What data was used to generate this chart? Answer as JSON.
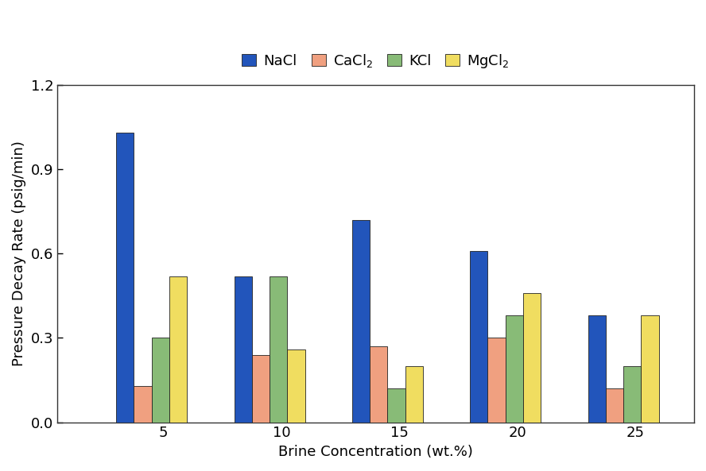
{
  "concentrations": [
    5,
    10,
    15,
    20,
    25
  ],
  "series": {
    "NaCl": [
      1.03,
      0.52,
      0.72,
      0.61,
      0.38
    ],
    "CaCl2": [
      0.13,
      0.24,
      0.27,
      0.3,
      0.12
    ],
    "KCl": [
      0.3,
      0.52,
      0.12,
      0.38,
      0.2
    ],
    "MgCl2": [
      0.52,
      0.26,
      0.2,
      0.46,
      0.38
    ]
  },
  "colors": {
    "NaCl": "#2255bb",
    "CaCl2": "#f0a080",
    "KCl": "#88bb77",
    "MgCl2": "#f0dd60"
  },
  "legend_labels": [
    "NaCl",
    "CaCl$_2$",
    "KCl",
    "MgCl$_2$"
  ],
  "legend_keys": [
    "NaCl",
    "CaCl2",
    "KCl",
    "MgCl2"
  ],
  "xlabel": "Brine Concentration (wt.%)",
  "ylabel": "Pressure Decay Rate (psig/min)",
  "ylim": [
    0,
    1.2
  ],
  "yticks": [
    0.0,
    0.3,
    0.6,
    0.9,
    1.2
  ],
  "background_color": "#ffffff",
  "edge_color": "#222222"
}
